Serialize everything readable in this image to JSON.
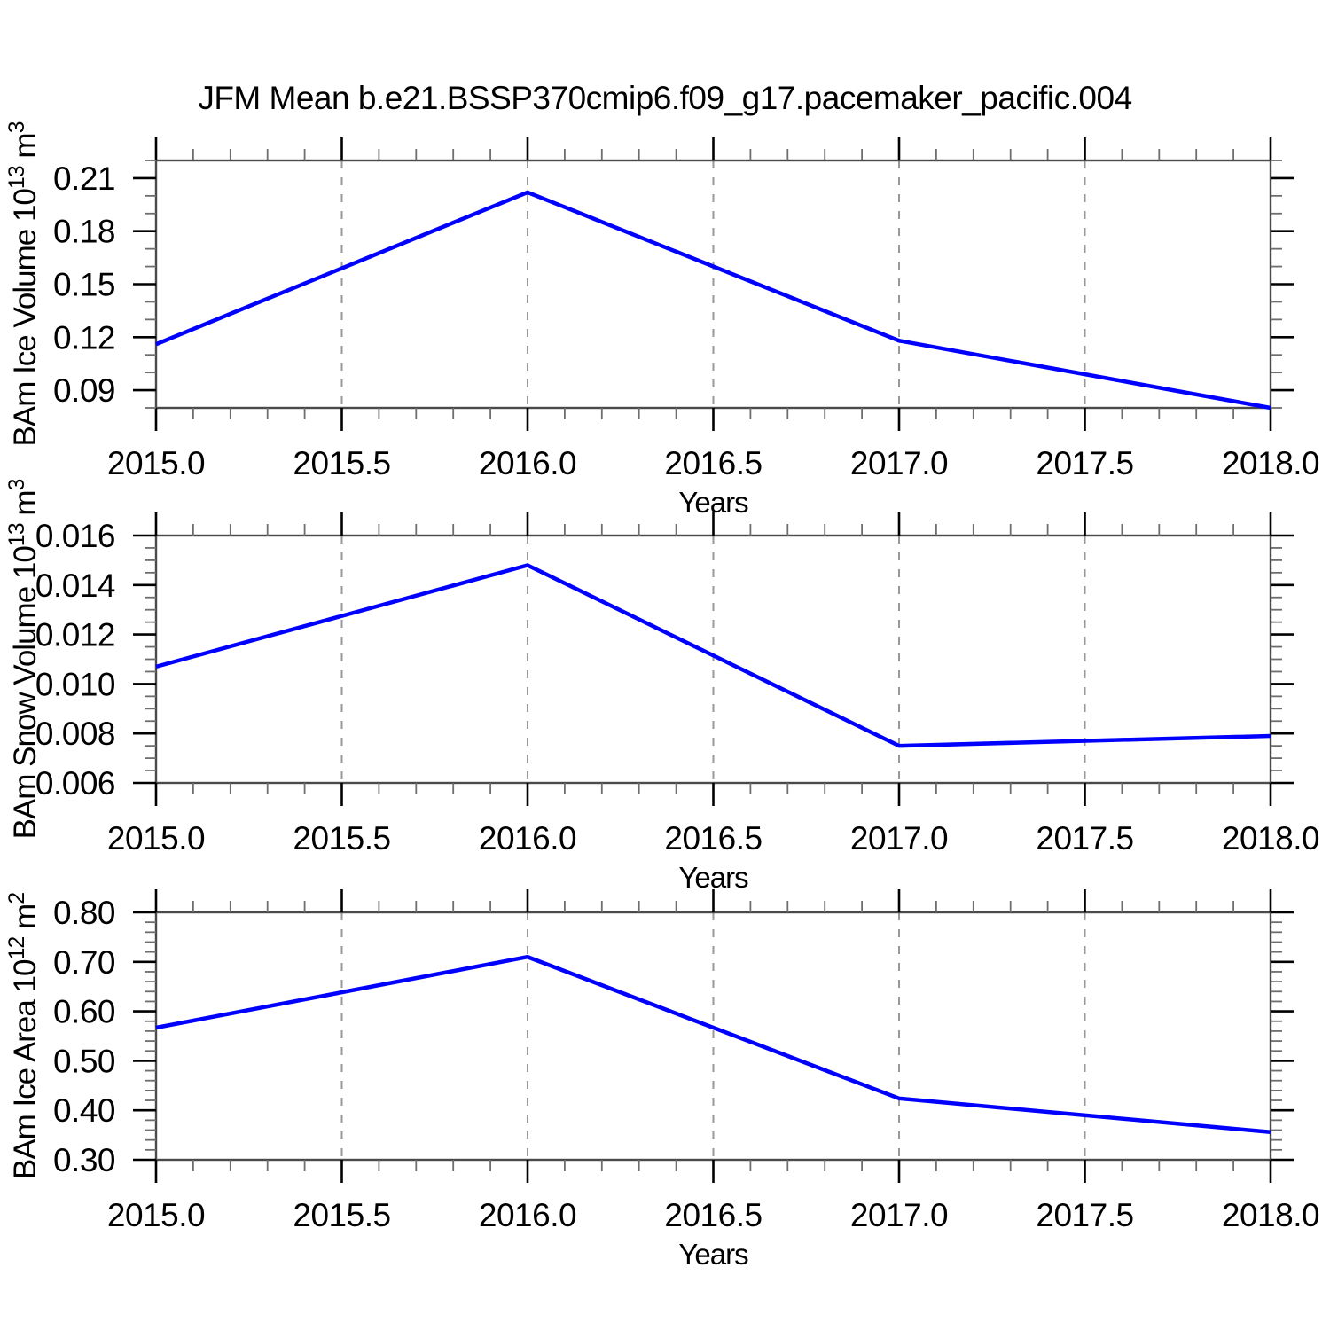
{
  "title": "JFM Mean b.e21.BSSP370cmip6.f09_g17.pacemaker_pacific.004",
  "axis_color": "#000000",
  "grid_color": "#999999",
  "chart_data": [
    {
      "type": "line",
      "name": "bam-ice-volume",
      "ylabel": "BAm Ice Volume 10^13 m^3",
      "ylabel_parts": [
        {
          "t": "BAm Ice Volume 10"
        },
        {
          "t": "13",
          "sup": true
        },
        {
          "t": " m"
        },
        {
          "t": "3",
          "sup": true
        }
      ],
      "xlabel": "Years",
      "series": [
        {
          "name": "BAm Ice Volume",
          "x": [
            2015.0,
            2016.0,
            2017.0,
            2018.0
          ],
          "y": [
            0.116,
            0.202,
            0.118,
            0.08
          ]
        }
      ],
      "xlim": [
        2015.0,
        2018.0
      ],
      "ylim": [
        0.08,
        0.22
      ],
      "x_tick_values": [
        2015.0,
        2015.5,
        2016.0,
        2016.5,
        2017.0,
        2017.5,
        2018.0
      ],
      "x_tick_labels": [
        "2015.0",
        "2015.5",
        "2016.0",
        "2016.5",
        "2017.0",
        "2017.5",
        "2018.0"
      ],
      "x_minor_step": 0.1,
      "y_tick_values": [
        0.21,
        0.18,
        0.15,
        0.12,
        0.09
      ],
      "y_tick_labels": [
        "0.21",
        "0.18",
        "0.15",
        "0.12",
        "0.09"
      ],
      "y_minor_step": 0.01,
      "grid_x": [
        2015.5,
        2016.0,
        2016.5,
        2017.0,
        2017.5
      ],
      "line_color": "#0000ff"
    },
    {
      "type": "line",
      "name": "bam-snow-volume",
      "ylabel": "BAm Snow Volume 10^13 m^3",
      "ylabel_parts": [
        {
          "t": "BAm Snow Volume 10"
        },
        {
          "t": "13",
          "sup": true
        },
        {
          "t": " m"
        },
        {
          "t": "3",
          "sup": true
        }
      ],
      "xlabel": "Years",
      "series": [
        {
          "name": "BAm Snow Volume",
          "x": [
            2015.0,
            2016.0,
            2017.0,
            2018.0
          ],
          "y": [
            0.0107,
            0.0148,
            0.0075,
            0.0079
          ]
        }
      ],
      "xlim": [
        2015.0,
        2018.0
      ],
      "ylim": [
        0.006,
        0.016
      ],
      "x_tick_values": [
        2015.0,
        2015.5,
        2016.0,
        2016.5,
        2017.0,
        2017.5,
        2018.0
      ],
      "x_tick_labels": [
        "2015.0",
        "2015.5",
        "2016.0",
        "2016.5",
        "2017.0",
        "2017.5",
        "2018.0"
      ],
      "x_minor_step": 0.1,
      "y_tick_values": [
        0.016,
        0.014,
        0.012,
        0.01,
        0.008,
        0.006
      ],
      "y_tick_labels": [
        "0.016",
        "0.014",
        "0.012",
        "0.010",
        "0.008",
        "0.006"
      ],
      "y_minor_step": 0.0005,
      "grid_x": [
        2015.5,
        2016.0,
        2016.5,
        2017.0,
        2017.5
      ],
      "line_color": "#0000ff"
    },
    {
      "type": "line",
      "name": "bam-ice-area",
      "ylabel": "BAm Ice Area 10^12 m^2",
      "ylabel_parts": [
        {
          "t": "BAm Ice Area 10"
        },
        {
          "t": "12",
          "sup": true
        },
        {
          "t": " m"
        },
        {
          "t": "2",
          "sup": true
        }
      ],
      "xlabel": "Years",
      "series": [
        {
          "name": "BAm Ice Area",
          "x": [
            2015.0,
            2016.0,
            2017.0,
            2018.0
          ],
          "y": [
            0.567,
            0.71,
            0.424,
            0.356
          ]
        }
      ],
      "xlim": [
        2015.0,
        2018.0
      ],
      "ylim": [
        0.3,
        0.8
      ],
      "x_tick_values": [
        2015.0,
        2015.5,
        2016.0,
        2016.5,
        2017.0,
        2017.5,
        2018.0
      ],
      "x_tick_labels": [
        "2015.0",
        "2015.5",
        "2016.0",
        "2016.5",
        "2017.0",
        "2017.5",
        "2018.0"
      ],
      "x_minor_step": 0.1,
      "y_tick_values": [
        0.8,
        0.7,
        0.6,
        0.5,
        0.4,
        0.3
      ],
      "y_tick_labels": [
        "0.80",
        "0.70",
        "0.60",
        "0.50",
        "0.40",
        "0.30"
      ],
      "y_minor_step": 0.02,
      "grid_x": [
        2015.5,
        2016.0,
        2016.5,
        2017.0,
        2017.5
      ],
      "line_color": "#0000ff"
    }
  ]
}
